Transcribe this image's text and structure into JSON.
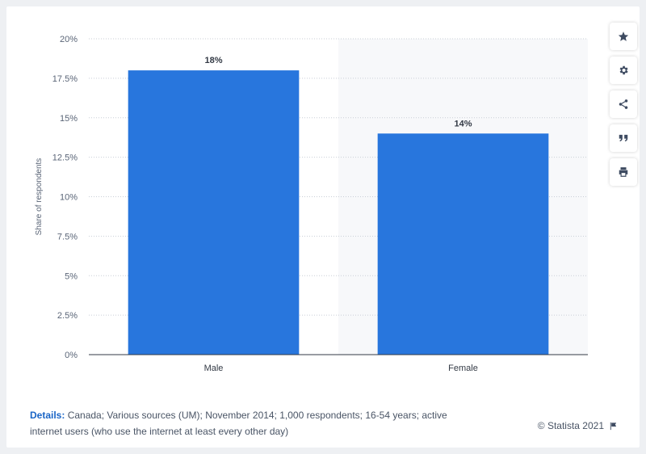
{
  "chart_data": {
    "type": "bar",
    "categories": [
      "Male",
      "Female"
    ],
    "values": [
      18,
      14
    ],
    "data_labels": [
      "18%",
      "14%"
    ],
    "ylabel": "Share of respondents",
    "ylim": [
      0,
      20
    ],
    "yticks": [
      0,
      2.5,
      5,
      7.5,
      10,
      12.5,
      15,
      17.5,
      20
    ],
    "ytick_labels": [
      "0%",
      "2.5%",
      "5%",
      "7.5%",
      "10%",
      "12.5%",
      "15%",
      "17.5%",
      "20%"
    ],
    "bar_color": "#2876dd",
    "grid": true
  },
  "side_buttons": [
    {
      "icon": "star-icon",
      "name": "favorite-button"
    },
    {
      "icon": "gear-icon",
      "name": "settings-button"
    },
    {
      "icon": "share-icon",
      "name": "share-button"
    },
    {
      "icon": "quote-icon",
      "name": "cite-button"
    },
    {
      "icon": "print-icon",
      "name": "print-button"
    }
  ],
  "footer": {
    "details_label": "Details:",
    "details_text": " Canada; Various sources (UM); November 2014; 1,000 respondents; 16-54 years; active internet users (who use the internet at least every other day)",
    "copyright": "© Statista 2021"
  }
}
